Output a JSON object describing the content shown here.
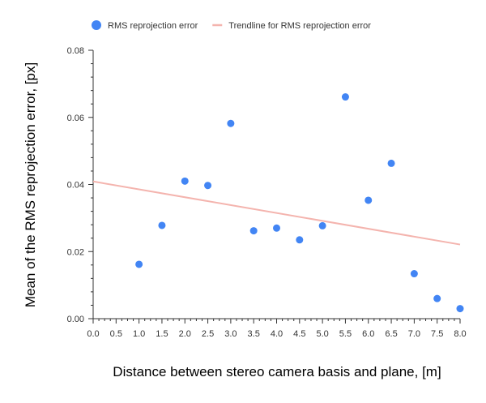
{
  "chart_data": {
    "type": "scatter",
    "title": "",
    "xlabel": "Distance between stereo camera basis and plane, [m]",
    "ylabel": "Mean of the RMS reprojection error, [px]",
    "xlim": [
      0,
      8
    ],
    "ylim": [
      0,
      0.08
    ],
    "x_ticks": [
      "0.0",
      "0.5",
      "1.0",
      "1.5",
      "2.0",
      "2.5",
      "3.0",
      "3.5",
      "4.0",
      "4.5",
      "5.0",
      "5.5",
      "6.0",
      "6.5",
      "7.0",
      "7.5",
      "8.0"
    ],
    "y_ticks": [
      "0.00",
      "0.02",
      "0.04",
      "0.06",
      "0.08"
    ],
    "legend_position": "top-left",
    "grid": false,
    "series": [
      {
        "name": "RMS reprojection error",
        "kind": "scatter",
        "color": "#4285f4",
        "points": [
          {
            "x": 1.0,
            "y": 0.0162
          },
          {
            "x": 1.5,
            "y": 0.0278
          },
          {
            "x": 2.0,
            "y": 0.041
          },
          {
            "x": 2.5,
            "y": 0.0397
          },
          {
            "x": 3.0,
            "y": 0.0582
          },
          {
            "x": 3.5,
            "y": 0.0262
          },
          {
            "x": 4.0,
            "y": 0.027
          },
          {
            "x": 4.5,
            "y": 0.0235
          },
          {
            "x": 5.0,
            "y": 0.0277
          },
          {
            "x": 5.5,
            "y": 0.0661
          },
          {
            "x": 6.0,
            "y": 0.0353
          },
          {
            "x": 6.5,
            "y": 0.0463
          },
          {
            "x": 7.0,
            "y": 0.0134
          },
          {
            "x": 7.5,
            "y": 0.006
          },
          {
            "x": 8.0,
            "y": 0.003
          }
        ]
      },
      {
        "name": "Trendline for RMS reprojection error",
        "kind": "trendline",
        "color": "#f4b4ae",
        "points": [
          {
            "x": 0.0,
            "y": 0.0409
          },
          {
            "x": 8.0,
            "y": 0.0221
          }
        ]
      }
    ]
  }
}
